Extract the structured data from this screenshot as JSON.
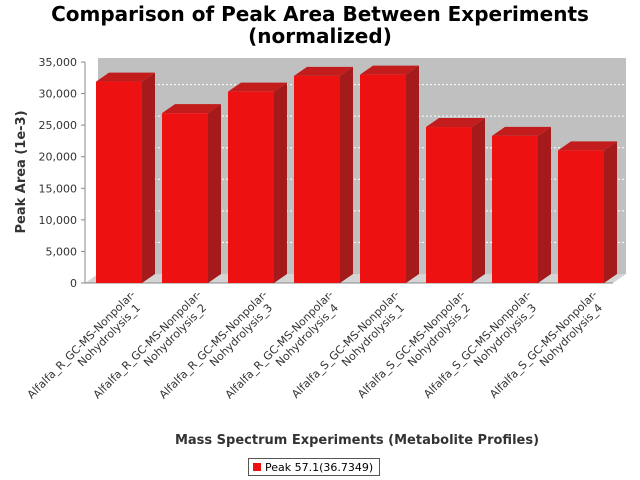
{
  "chart_data": {
    "type": "bar",
    "title_line1": "Comparison of Peak Area Between Experiments",
    "title_line2": "(normalized)",
    "xlabel": "Mass Spectrum Experiments (Metabolite Profiles)",
    "ylabel": "Peak Area (1e-3)",
    "ylim": [
      0,
      35000
    ],
    "yticks": [
      "0",
      "5,000",
      "10,000",
      "15,000",
      "20,000",
      "25,000",
      "30,000",
      "35,000"
    ],
    "categories": [
      [
        "Alfalfa_R_GC-MS-Nonpolar-",
        "Nohydrolysis_1"
      ],
      [
        "Alfalfa_R_GC-MS-Nonpolar-",
        "Nohydrolysis_2"
      ],
      [
        "Alfalfa_R_GC-MS-Nonpolar-",
        "Nohydrolysis_3"
      ],
      [
        "Alfalfa_R_GC-MS-Nonpolar-",
        "Nohydrolysis_4"
      ],
      [
        "Alfalfa_S_GC-MS-Nonpolar-",
        "Nohydrolysis_1"
      ],
      [
        "Alfalfa_S_GC-MS-Nonpolar-",
        "Nohydrolysis_2"
      ],
      [
        "Alfalfa_S_GC-MS-Nonpolar-",
        "Nohydrolysis_3"
      ],
      [
        "Alfalfa_S_GC-MS-Nonpolar-",
        "Nohydrolysis_4"
      ]
    ],
    "series": [
      {
        "name": "Peak 57.1(36.7349)",
        "values": [
          31900,
          26900,
          30300,
          32800,
          33000,
          24700,
          23300,
          21000
        ]
      }
    ],
    "grid": true,
    "legend_position": "bottom-center",
    "colors": {
      "bar_front": "#ee1111",
      "bar_side": "#a51a1a",
      "bar_top": "#c21c1c",
      "plot_bg": "#c0c0c0",
      "floor": "#d4d4d4",
      "grid": "#ffffff"
    }
  }
}
